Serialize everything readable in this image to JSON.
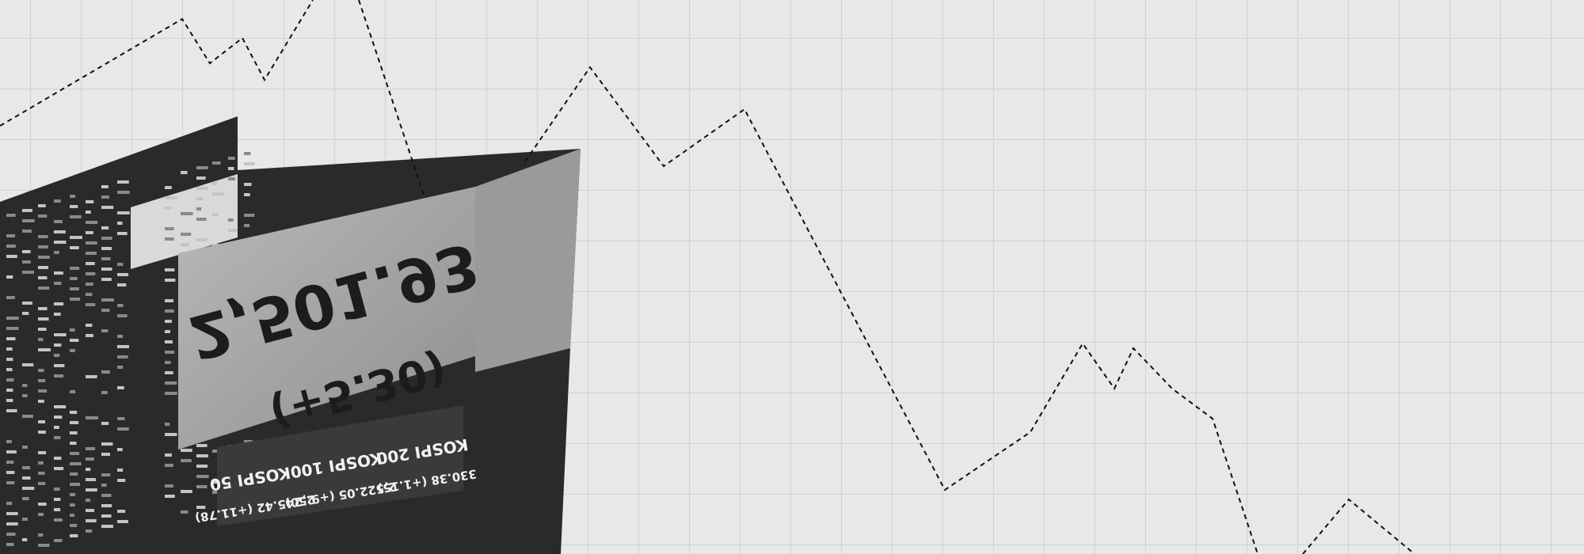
{
  "board": {
    "index_value": "2,501.93",
    "index_change": "(+5.30)",
    "indices": [
      {
        "name": "KOSPI 50",
        "value": "2,245.42 (+11.78)"
      },
      {
        "name": "KOSPI 100",
        "value": "2,522.05 (+9.50)"
      },
      {
        "name": "KOSPI 200",
        "value": "330.38 (+1.15)"
      }
    ]
  }
}
